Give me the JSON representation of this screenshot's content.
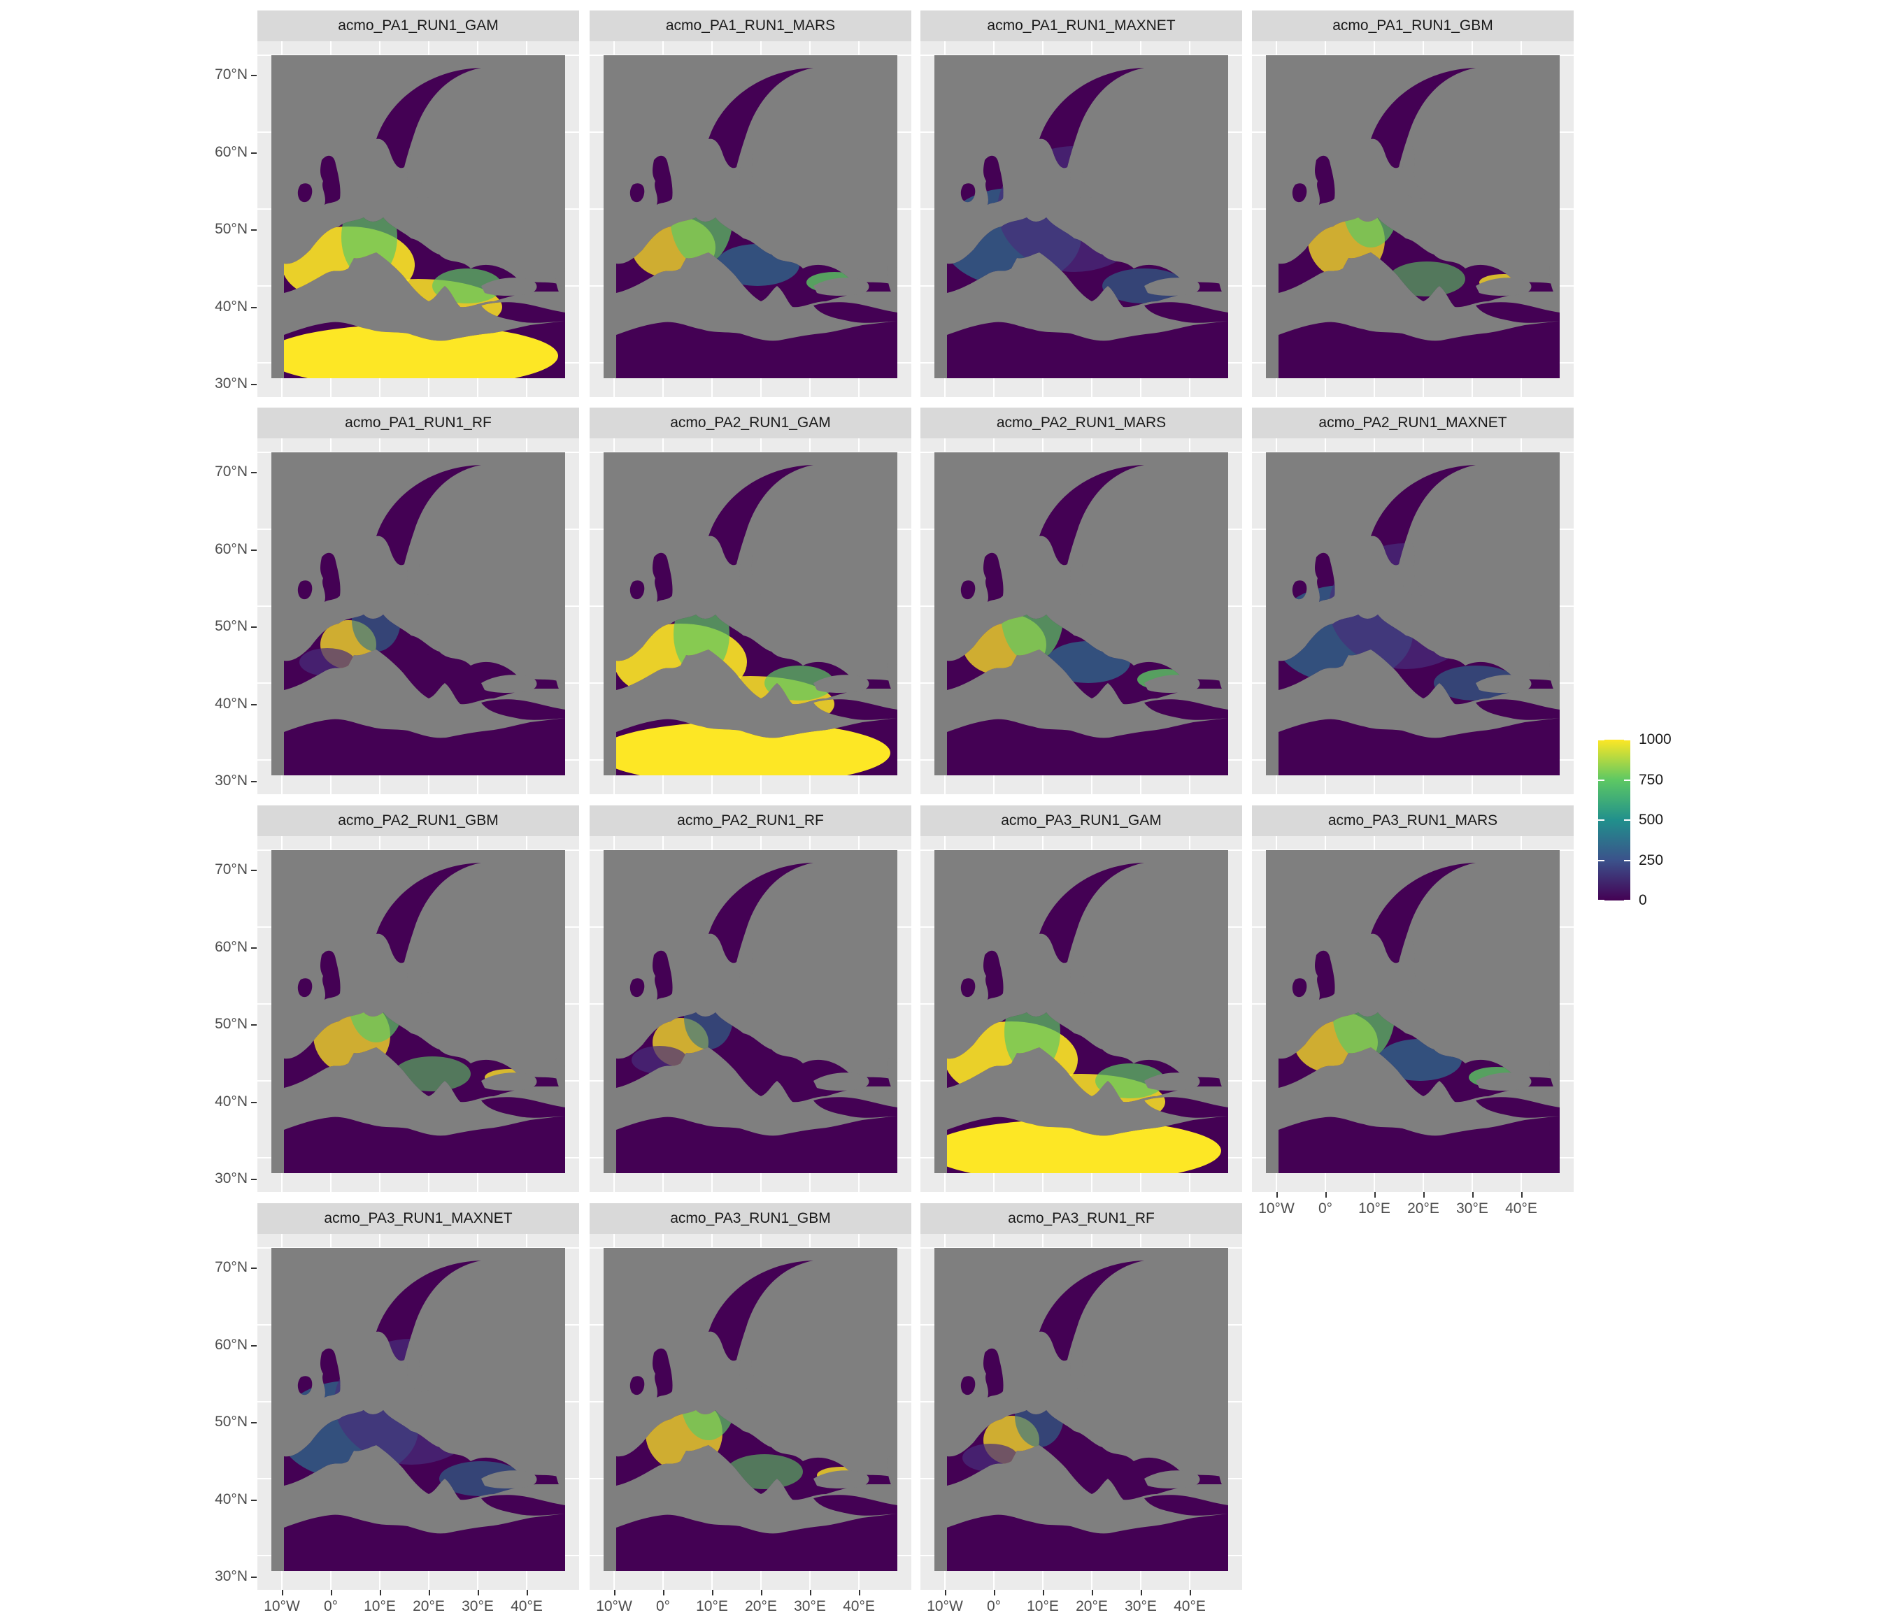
{
  "figure": {
    "background": "#ffffff",
    "panel_background": "#ebebeb",
    "strip_background": "#d9d9d9",
    "ocean_color": "#7f7f7f"
  },
  "facets": [
    {
      "title": "acmo_PA1_RUN1_GAM",
      "pattern": "gam-high"
    },
    {
      "title": "acmo_PA1_RUN1_MARS",
      "pattern": "mars"
    },
    {
      "title": "acmo_PA1_RUN1_MAXNET",
      "pattern": "maxnet"
    },
    {
      "title": "acmo_PA1_RUN1_GBM",
      "pattern": "gbm"
    },
    {
      "title": "acmo_PA1_RUN1_RF",
      "pattern": "rf"
    },
    {
      "title": "acmo_PA2_RUN1_GAM",
      "pattern": "gam-high"
    },
    {
      "title": "acmo_PA2_RUN1_MARS",
      "pattern": "mars"
    },
    {
      "title": "acmo_PA2_RUN1_MAXNET",
      "pattern": "maxnet"
    },
    {
      "title": "acmo_PA2_RUN1_GBM",
      "pattern": "gbm"
    },
    {
      "title": "acmo_PA2_RUN1_RF",
      "pattern": "rf"
    },
    {
      "title": "acmo_PA3_RUN1_GAM",
      "pattern": "gam-high"
    },
    {
      "title": "acmo_PA3_RUN1_MARS",
      "pattern": "mars"
    },
    {
      "title": "acmo_PA3_RUN1_MAXNET",
      "pattern": "maxnet"
    },
    {
      "title": "acmo_PA3_RUN1_GBM",
      "pattern": "gbm"
    },
    {
      "title": "acmo_PA3_RUN1_RF",
      "pattern": "rf"
    }
  ],
  "axes": {
    "y_ticks": [
      "70°N",
      "60°N",
      "50°N",
      "40°N",
      "30°N"
    ],
    "x_ticks": [
      "10°W",
      "0°",
      "10°E",
      "20°E",
      "30°E",
      "40°E"
    ],
    "lat_range": [
      29,
      71
    ],
    "lon_range": [
      -12,
      48
    ]
  },
  "legend": {
    "labels": [
      "1000",
      "750",
      "500",
      "250",
      "0"
    ],
    "values": [
      1000,
      750,
      500,
      250,
      0
    ],
    "min": 0,
    "max": 1000,
    "colors": [
      "#440154",
      "#3b528b",
      "#21908c",
      "#5dc863",
      "#fde725"
    ]
  },
  "map_palette": {
    "low": "#440154",
    "low_mid": "#472d7b",
    "mid": "#2c728e",
    "mid_high": "#5dc863",
    "high": "#fde725"
  }
}
